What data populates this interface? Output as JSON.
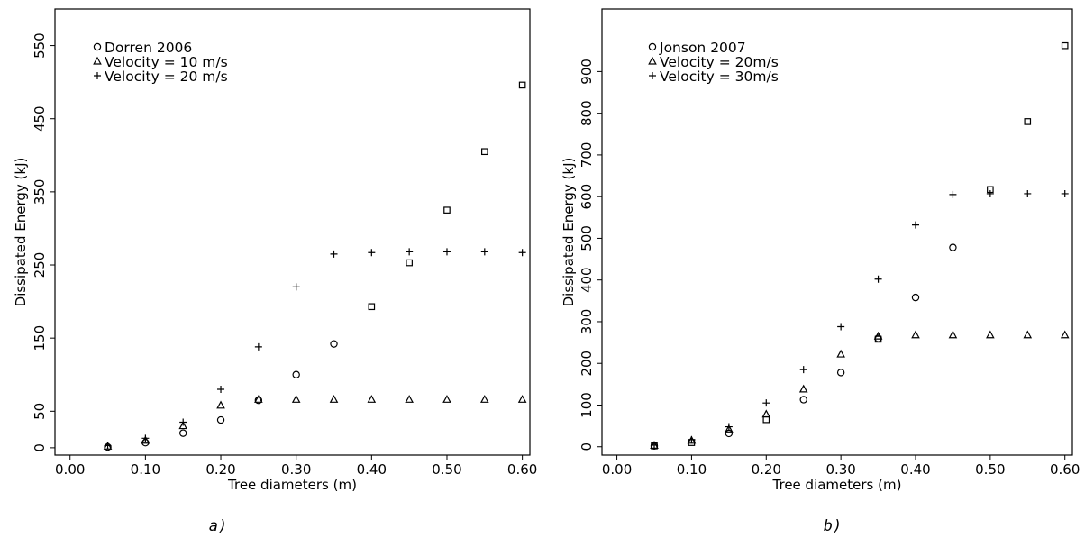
{
  "chart_data": [
    {
      "type": "scatter",
      "panel": "a",
      "caption": "a)",
      "xlabel": "Tree diameters (m)",
      "ylabel": "Dissipated Energy (kJ)",
      "xlim": [
        -0.02,
        0.61
      ],
      "ylim": [
        -10,
        600
      ],
      "xticks": [
        0.0,
        0.1,
        0.2,
        0.3,
        0.4,
        0.5,
        0.6
      ],
      "xtick_labels": [
        "0.00",
        "0.10",
        "0.20",
        "0.30",
        "0.40",
        "0.50",
        "0.60"
      ],
      "yticks": [
        0,
        50,
        150,
        250,
        350,
        450,
        550
      ],
      "ytick_labels": [
        "0",
        "50",
        "150",
        "250",
        "350",
        "450",
        "550"
      ],
      "legend_position": "top-left",
      "legend": [
        {
          "symbol": "circle",
          "label": "Dorren 2006"
        },
        {
          "symbol": "triangle",
          "label": "Velocity = 10 m/s"
        },
        {
          "symbol": "plus",
          "label": "Velocity = 20 m/s"
        }
      ],
      "series": [
        {
          "symbol": "circle",
          "x": [
            0.05,
            0.1,
            0.15,
            0.2,
            0.25,
            0.3,
            0.35
          ],
          "y": [
            1,
            7,
            20,
            38,
            65,
            100,
            142
          ]
        },
        {
          "symbol": "square",
          "x": [
            0.4,
            0.45,
            0.5,
            0.55,
            0.6
          ],
          "y": [
            193,
            253,
            325,
            405,
            496
          ]
        },
        {
          "symbol": "triangle",
          "x": [
            0.05,
            0.1,
            0.15,
            0.2,
            0.25,
            0.3,
            0.35,
            0.4,
            0.45,
            0.5,
            0.55,
            0.6
          ],
          "y": [
            2,
            10,
            30,
            58,
            66,
            66,
            66,
            66,
            66,
            66,
            66,
            66
          ]
        },
        {
          "symbol": "plus",
          "x": [
            0.05,
            0.1,
            0.15,
            0.2,
            0.25,
            0.3,
            0.35,
            0.4,
            0.45,
            0.5,
            0.55,
            0.6
          ],
          "y": [
            3,
            13,
            35,
            80,
            138,
            220,
            265,
            267,
            268,
            268,
            268,
            267
          ]
        }
      ]
    },
    {
      "type": "scatter",
      "panel": "b",
      "caption": "b)",
      "xlabel": "Tree diameters (m)",
      "ylabel": "Dissipated Energy (kJ)",
      "xlim": [
        -0.02,
        0.61
      ],
      "ylim": [
        -20,
        1050
      ],
      "xticks": [
        0.0,
        0.1,
        0.2,
        0.3,
        0.4,
        0.5,
        0.6
      ],
      "xtick_labels": [
        "0.00",
        "0.10",
        "0.20",
        "0.30",
        "0.40",
        "0.50",
        "0.60"
      ],
      "yticks": [
        0,
        100,
        200,
        300,
        400,
        500,
        600,
        700,
        800,
        900
      ],
      "ytick_labels": [
        "0",
        "100",
        "200",
        "300",
        "400",
        "500",
        "600",
        "700",
        "800",
        "900"
      ],
      "legend_position": "top-left",
      "legend": [
        {
          "symbol": "circle",
          "label": "Jonson 2007"
        },
        {
          "symbol": "triangle",
          "label": "Velocity = 20m/s"
        },
        {
          "symbol": "plus",
          "label": "Velocity = 30m/s"
        }
      ],
      "series": [
        {
          "symbol": "circle",
          "x": [
            0.05,
            0.15,
            0.25,
            0.3,
            0.35,
            0.4,
            0.45
          ],
          "y": [
            2,
            32,
            113,
            178,
            260,
            358,
            478
          ]
        },
        {
          "symbol": "square",
          "x": [
            0.05,
            0.1,
            0.2,
            0.35,
            0.5,
            0.55,
            0.6
          ],
          "y": [
            2,
            10,
            65,
            258,
            617,
            780,
            962
          ]
        },
        {
          "symbol": "triangle",
          "x": [
            0.05,
            0.1,
            0.15,
            0.2,
            0.25,
            0.3,
            0.35,
            0.4,
            0.45,
            0.5,
            0.55,
            0.6
          ],
          "y": [
            3,
            15,
            42,
            78,
            138,
            222,
            265,
            268,
            268,
            268,
            268,
            268
          ]
        },
        {
          "symbol": "plus",
          "x": [
            0.05,
            0.1,
            0.15,
            0.2,
            0.25,
            0.3,
            0.35,
            0.4,
            0.45,
            0.5,
            0.55,
            0.6
          ],
          "y": [
            4,
            17,
            48,
            105,
            185,
            288,
            402,
            532,
            605,
            607,
            607,
            607
          ]
        }
      ]
    }
  ]
}
